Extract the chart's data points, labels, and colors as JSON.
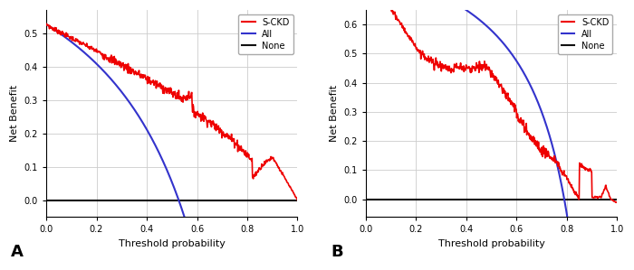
{
  "panel_A": {
    "title": "A",
    "prevalence": 0.527,
    "ylabel": "Net Benefit",
    "xlabel": "Threshold probability",
    "xlim": [
      0.0,
      1.0
    ],
    "ylim": [
      -0.05,
      0.57
    ],
    "yticks": [
      0.0,
      0.1,
      0.2,
      0.3,
      0.4,
      0.5
    ],
    "xticks": [
      0.0,
      0.2,
      0.4,
      0.6,
      0.8,
      1.0
    ]
  },
  "panel_B": {
    "title": "B",
    "prevalence": 0.79,
    "ylabel": "Net Benefit",
    "xlabel": "Threshold probability",
    "xlim": [
      0.0,
      1.0
    ],
    "ylim": [
      -0.06,
      0.65
    ],
    "yticks": [
      0.0,
      0.1,
      0.2,
      0.3,
      0.4,
      0.5,
      0.6
    ],
    "xticks": [
      0.0,
      0.2,
      0.4,
      0.6,
      0.8,
      1.0
    ]
  },
  "legend_labels": [
    "S-CKD",
    "All",
    "None"
  ],
  "line_colors": [
    "#EE0000",
    "#3333CC",
    "#111111"
  ],
  "background_color": "#FFFFFF",
  "grid_color": "#CCCCCC",
  "font_size": 8,
  "label_fontsize": 8
}
